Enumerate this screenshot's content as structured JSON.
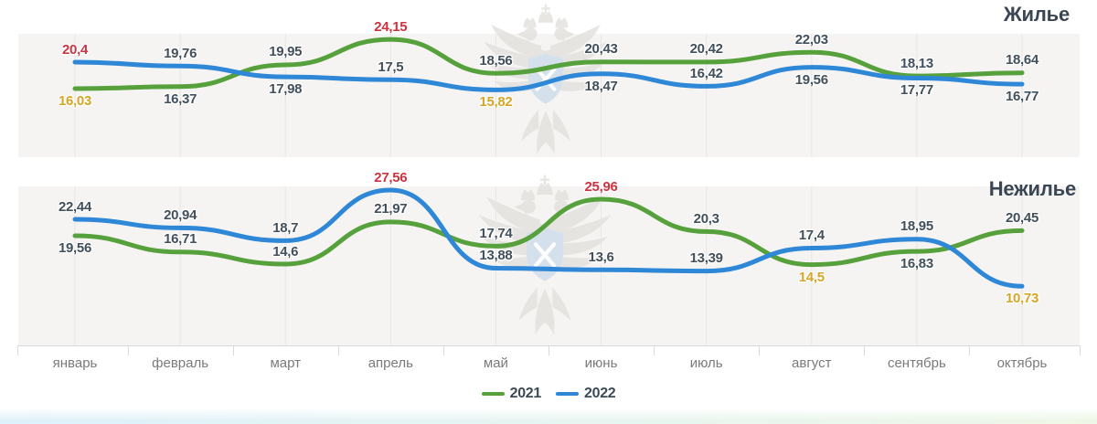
{
  "titles": {
    "housing": "Жилье",
    "nonhousing": "Нежилье"
  },
  "months": [
    "январь",
    "февраль",
    "март",
    "апрель",
    "май",
    "июнь",
    "июль",
    "август",
    "сентябрь",
    "октябрь"
  ],
  "legend": {
    "items": [
      {
        "label": "2021",
        "color": "#57a13c"
      },
      {
        "label": "2022",
        "color": "#2e87d7"
      }
    ],
    "position": "bottom-center"
  },
  "colors": {
    "green_series": "#57a13c",
    "blue_series": "#2e87d7",
    "value_label_default": "#42505c",
    "value_label_max": "#cb3440",
    "value_label_min": "#d8a525",
    "month_label": "#7a7a7a",
    "gridline": "#e8e6e4",
    "panel_background": "#f5f4f2",
    "axis": "#d9d9d9",
    "title": "#3a4653",
    "footer_gradient_left": "#def1fb",
    "footer_gradient_right": "#eef7e7"
  },
  "watermark": {
    "name": "rosreestr-double-headed-eagle",
    "body_color": "#e4e2df",
    "shield_color": "#cfdeed"
  },
  "chart_data": [
    {
      "type": "line",
      "title": "Жилье",
      "categories": [
        "январь",
        "февраль",
        "март",
        "апрель",
        "май",
        "июнь",
        "июль",
        "август",
        "сентябрь",
        "октябрь"
      ],
      "series": [
        {
          "name": "2021",
          "color": "#57a13c",
          "values": [
            16.03,
            16.37,
            19.95,
            24.15,
            18.56,
            20.43,
            20.42,
            22.03,
            18.13,
            18.64
          ],
          "label_side": [
            "b",
            "b",
            "a",
            "a",
            "a",
            "a",
            "a",
            "a",
            "a",
            "a"
          ]
        },
        {
          "name": "2022",
          "color": "#2e87d7",
          "values": [
            20.4,
            19.76,
            17.98,
            17.5,
            15.82,
            18.47,
            16.42,
            19.56,
            17.77,
            16.77
          ],
          "label_side": [
            "a",
            "a",
            "b",
            "a",
            "b",
            "b",
            "a",
            "b",
            "b",
            "b"
          ]
        }
      ],
      "annotations": "series maximum labeled red, series minimum labeled gold",
      "ylim": [
        14,
        26
      ],
      "grid": "vertical-only",
      "legend_position": "bottom-center",
      "decimal_separator": ","
    },
    {
      "type": "line",
      "title": "Нежилье",
      "categories": [
        "январь",
        "февраль",
        "март",
        "апрель",
        "май",
        "июнь",
        "июль",
        "август",
        "сентябрь",
        "октябрь"
      ],
      "series": [
        {
          "name": "2021",
          "color": "#57a13c",
          "values": [
            19.56,
            16.71,
            14.6,
            21.97,
            17.74,
            25.96,
            20.3,
            14.5,
            16.83,
            20.45
          ],
          "label_side": [
            "b",
            "a",
            "a",
            "a",
            "a",
            "a",
            "a",
            "b",
            "b",
            "a"
          ]
        },
        {
          "name": "2022",
          "color": "#2e87d7",
          "values": [
            22.44,
            20.94,
            18.7,
            27.56,
            13.88,
            13.6,
            13.39,
            17.4,
            18.95,
            10.73
          ],
          "label_side": [
            "a",
            "a",
            "a",
            "a",
            "a",
            "a",
            "a",
            "a",
            "a",
            "b"
          ]
        }
      ],
      "annotations": "series maximum labeled red, series minimum labeled gold",
      "ylim": [
        9,
        29
      ],
      "grid": "vertical-only",
      "legend_position": "bottom-center",
      "decimal_separator": ","
    }
  ]
}
